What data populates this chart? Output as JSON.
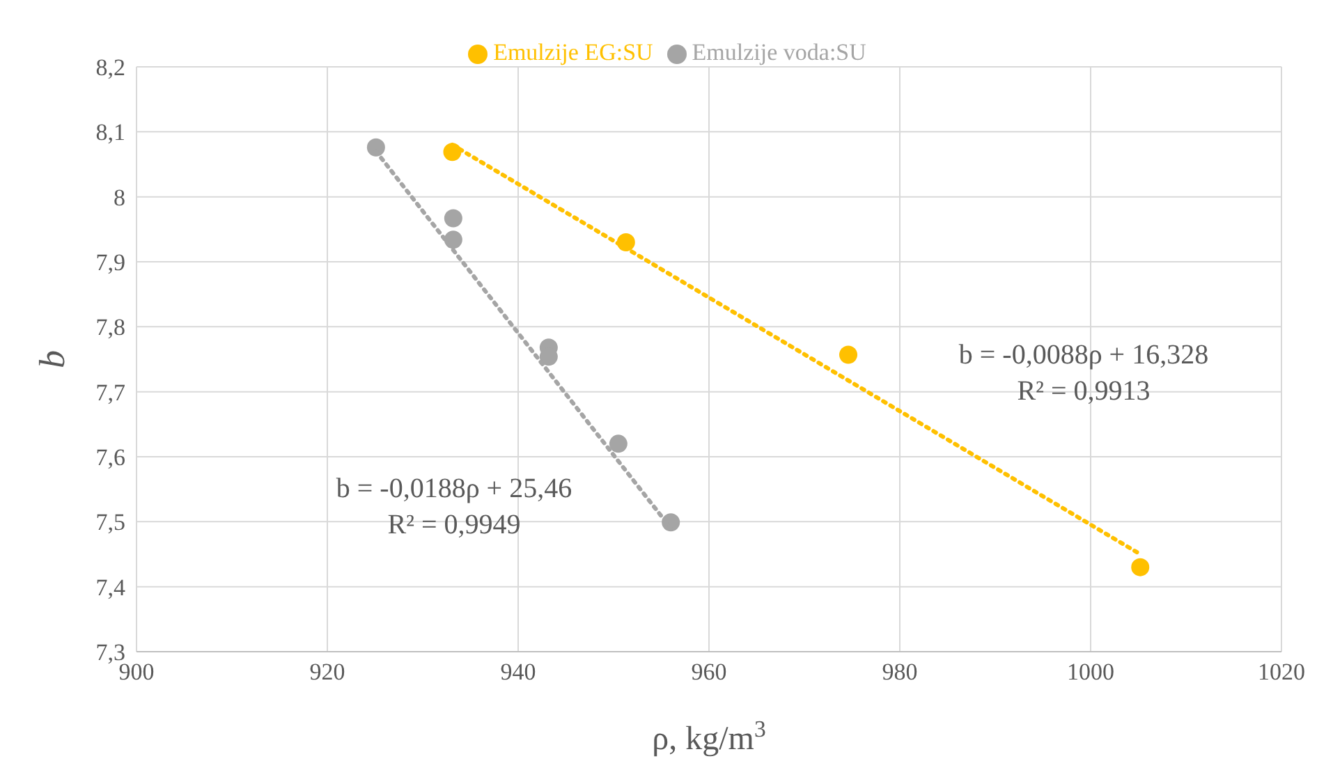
{
  "chart_data": {
    "type": "scatter",
    "xlabel": "ρ, kg/m$^{3}$",
    "ylabel": "b",
    "xlim": [
      900,
      1020
    ],
    "xticks": [
      900,
      920,
      940,
      960,
      980,
      1000,
      1020
    ],
    "ylim": [
      7.3,
      8.2
    ],
    "yticks": [
      {
        "value": 7.3,
        "label": "7,3"
      },
      {
        "value": 7.4,
        "label": "7,4"
      },
      {
        "value": 7.5,
        "label": "7,5"
      },
      {
        "value": 7.6,
        "label": "7,6"
      },
      {
        "value": 7.7,
        "label": "7,7"
      },
      {
        "value": 7.8,
        "label": "7,8"
      },
      {
        "value": 7.9,
        "label": "7,9"
      },
      {
        "value": 8.0,
        "label": "8"
      },
      {
        "value": 8.1,
        "label": "8,1"
      },
      {
        "value": 8.2,
        "label": "8,2"
      }
    ],
    "grid": true,
    "legend": "top",
    "marker": "circle",
    "series": [
      {
        "name": "Emulzije voda:SU",
        "color": "#a5a5a5",
        "x": [
          925.1,
          933.2,
          933.2,
          943.2,
          943.2,
          950.5,
          956.0
        ],
        "values": [
          8.076,
          7.967,
          7.934,
          7.768,
          7.754,
          7.62,
          7.499
        ]
      },
      {
        "name": "Emulzije EG:SU",
        "color": "#ffc000",
        "x": [
          933.1,
          951.3,
          974.6,
          1005.2
        ],
        "values": [
          8.069,
          7.93,
          7.757,
          7.43
        ]
      },
      {
        "type": "line",
        "color": "#a5a5a5",
        "line_style": "dotted",
        "marker": "none",
        "x": [
          925.1,
          956.0
        ],
        "values": [
          8.07,
          7.49
        ]
      },
      {
        "type": "line",
        "color": "#ffc000",
        "line_style": "dotted",
        "marker": "none",
        "x": [
          933.1,
          1005.2
        ],
        "values": [
          8.08,
          7.45
        ]
      }
    ],
    "annotations": [
      "b = -0,0188ρ + 25,46\nR² = 0,9949",
      "b = -0,0088ρ + 16,328\nR² = 0,9913"
    ]
  }
}
